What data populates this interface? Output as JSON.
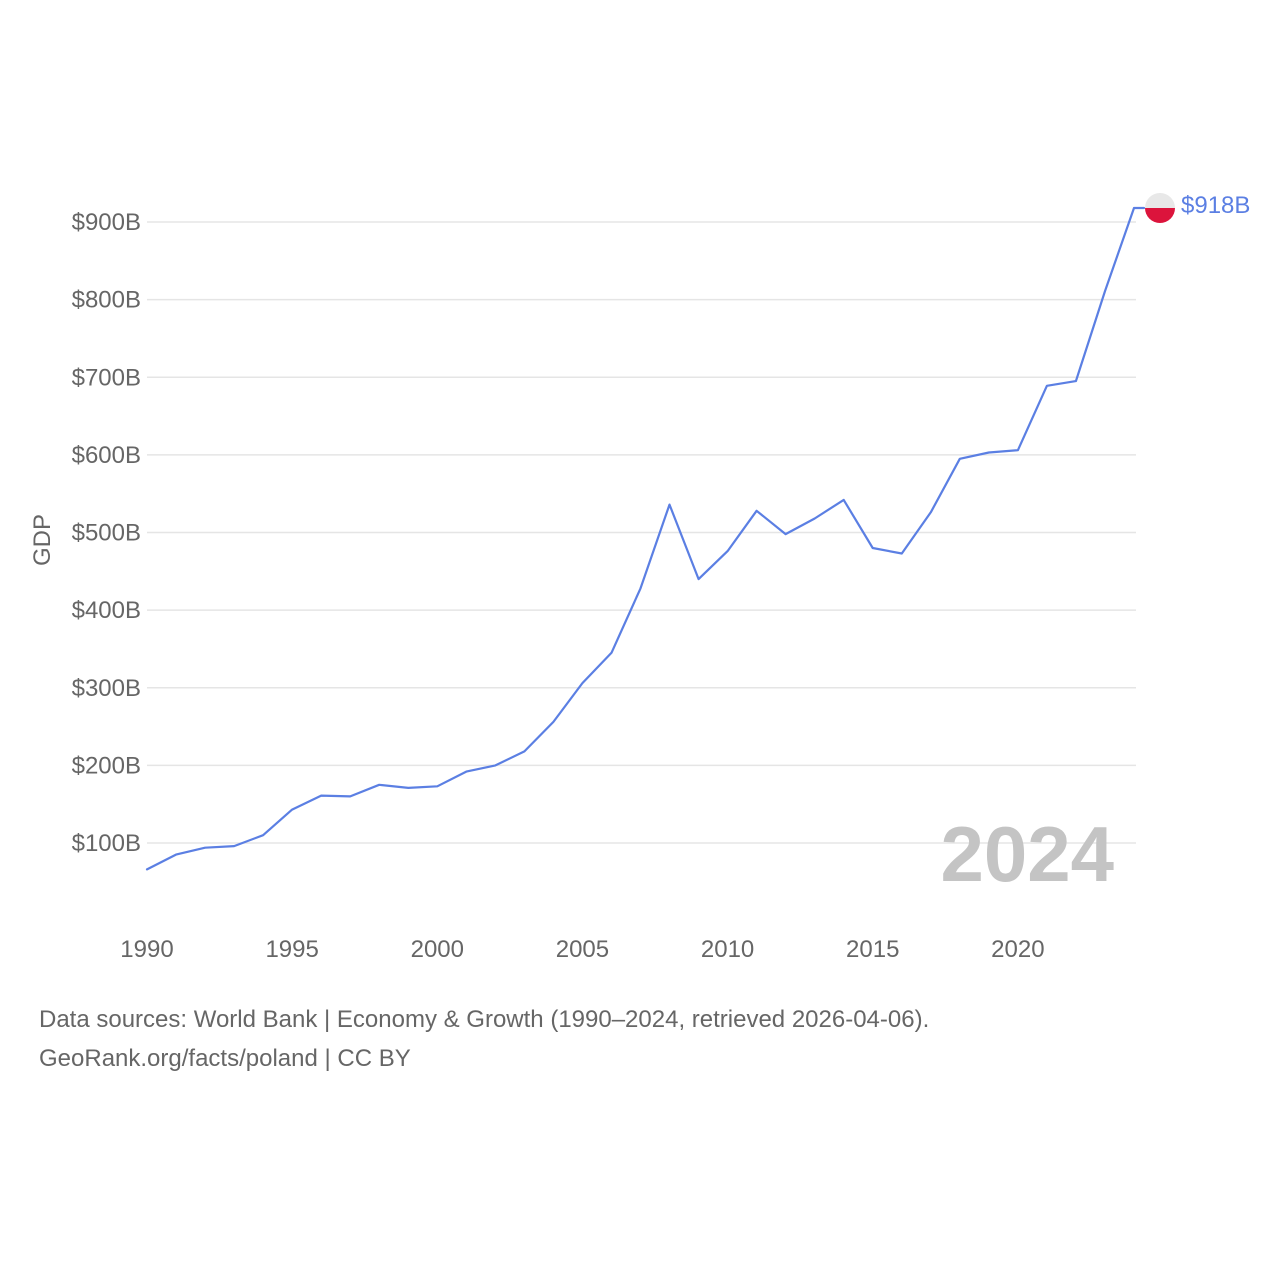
{
  "chart_data": {
    "type": "line",
    "title": "",
    "xlabel": "",
    "ylabel": "GDP",
    "x": [
      1990,
      1991,
      1992,
      1993,
      1994,
      1995,
      1996,
      1997,
      1998,
      1999,
      2000,
      2001,
      2002,
      2003,
      2004,
      2005,
      2006,
      2007,
      2008,
      2009,
      2010,
      2011,
      2012,
      2013,
      2014,
      2015,
      2016,
      2017,
      2018,
      2019,
      2020,
      2021,
      2022,
      2023,
      2024
    ],
    "series": [
      {
        "name": "Poland",
        "color": "#5b7fe3",
        "values": [
          66,
          85,
          94,
          96,
          110,
          143,
          161,
          160,
          175,
          171,
          173,
          192,
          200,
          218,
          256,
          306,
          345,
          428,
          536,
          440,
          476,
          528,
          498,
          518,
          542,
          480,
          473,
          526,
          595,
          603,
          606,
          689,
          695,
          811,
          918
        ]
      }
    ],
    "xticks": [
      1990,
      1995,
      2000,
      2005,
      2010,
      2015,
      2020
    ],
    "xtick_labels": [
      "1990",
      "1995",
      "2000",
      "2005",
      "2010",
      "2015",
      "2020"
    ],
    "yticks": [
      100,
      200,
      300,
      400,
      500,
      600,
      700,
      800,
      900
    ],
    "ytick_labels": [
      "$100B",
      "$200B",
      "$300B",
      "$400B",
      "$500B",
      "$600B",
      "$700B",
      "$800B",
      "$900B"
    ],
    "xlim": [
      1990,
      2024
    ],
    "ylim": [
      0,
      900
    ],
    "grid": true,
    "year_label": "2024",
    "end_label": "$918B",
    "end_marker": "poland-flag-icon",
    "flag_colors": {
      "top": "#e8e8e8",
      "bottom": "#dc143c"
    },
    "gridline_color": "#e5e5e5"
  },
  "footer": {
    "line1": "Data sources: World Bank | Economy & Growth (1990–2024, retrieved 2026-04-06).",
    "line2": "GeoRank.org/facts/poland | CC BY"
  }
}
